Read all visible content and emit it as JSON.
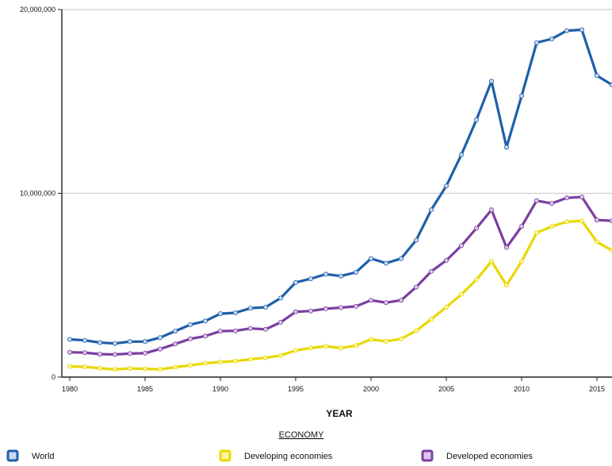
{
  "chart_data": {
    "type": "line",
    "xlabel": "YEAR",
    "ylabel": "",
    "xlim": [
      1980,
      2016
    ],
    "ylim": [
      0,
      20000000
    ],
    "x_ticks": [
      {
        "value": 1980,
        "label": "1980"
      },
      {
        "value": 1985,
        "label": "1985"
      },
      {
        "value": 1990,
        "label": "1990"
      },
      {
        "value": 1995,
        "label": "1995"
      },
      {
        "value": 2000,
        "label": "2000"
      },
      {
        "value": 2005,
        "label": "2005"
      },
      {
        "value": 2010,
        "label": "2010"
      },
      {
        "value": 2015,
        "label": "2015"
      }
    ],
    "y_ticks": [
      {
        "value": 0,
        "label": "0"
      },
      {
        "value": 10000000,
        "label": "10,000,000"
      },
      {
        "value": 20000000,
        "label": "20,000,000"
      }
    ],
    "grid": true,
    "legend": {
      "title": "ECONOMY",
      "placement": "bottom"
    },
    "x": [
      1980,
      1981,
      1982,
      1983,
      1984,
      1985,
      1986,
      1987,
      1988,
      1989,
      1990,
      1991,
      1992,
      1993,
      1994,
      1995,
      1996,
      1997,
      1998,
      1999,
      2000,
      2001,
      2002,
      2003,
      2004,
      2005,
      2006,
      2007,
      2008,
      2009,
      2010,
      2011,
      2012,
      2013,
      2014,
      2015,
      2016
    ],
    "series": [
      {
        "name": "World",
        "color": "#1f5fa8",
        "marker_color": "#c9d8ef",
        "values": [
          2050000,
          2000000,
          1880000,
          1830000,
          1930000,
          1930000,
          2150000,
          2500000,
          2850000,
          3050000,
          3450000,
          3500000,
          3750000,
          3800000,
          4300000,
          5150000,
          5350000,
          5600000,
          5500000,
          5700000,
          6450000,
          6200000,
          6450000,
          7450000,
          9100000,
          10400000,
          12100000,
          14000000,
          16100000,
          12500000,
          15300000,
          18200000,
          18400000,
          18850000,
          18900000,
          16400000,
          15900000
        ]
      },
      {
        "name": "Developing economies",
        "color": "#e8d800",
        "marker_color": "#fff3a0",
        "values": [
          580000,
          560000,
          480000,
          420000,
          470000,
          450000,
          420000,
          540000,
          640000,
          750000,
          820000,
          870000,
          970000,
          1050000,
          1180000,
          1450000,
          1580000,
          1680000,
          1580000,
          1720000,
          2050000,
          1950000,
          2080000,
          2520000,
          3150000,
          3800000,
          4500000,
          5300000,
          6300000,
          5000000,
          6300000,
          7850000,
          8200000,
          8450000,
          8500000,
          7350000,
          6900000
        ]
      },
      {
        "name": "Developed economies",
        "color": "#7a3fa0",
        "marker_color": "#dcc7ea",
        "values": [
          1350000,
          1330000,
          1250000,
          1230000,
          1280000,
          1300000,
          1530000,
          1800000,
          2080000,
          2230000,
          2500000,
          2520000,
          2650000,
          2600000,
          2980000,
          3550000,
          3600000,
          3720000,
          3780000,
          3850000,
          4180000,
          4050000,
          4180000,
          4900000,
          5750000,
          6350000,
          7150000,
          8100000,
          9100000,
          7050000,
          8200000,
          9600000,
          9450000,
          9750000,
          9800000,
          8550000,
          8500000
        ]
      }
    ]
  }
}
